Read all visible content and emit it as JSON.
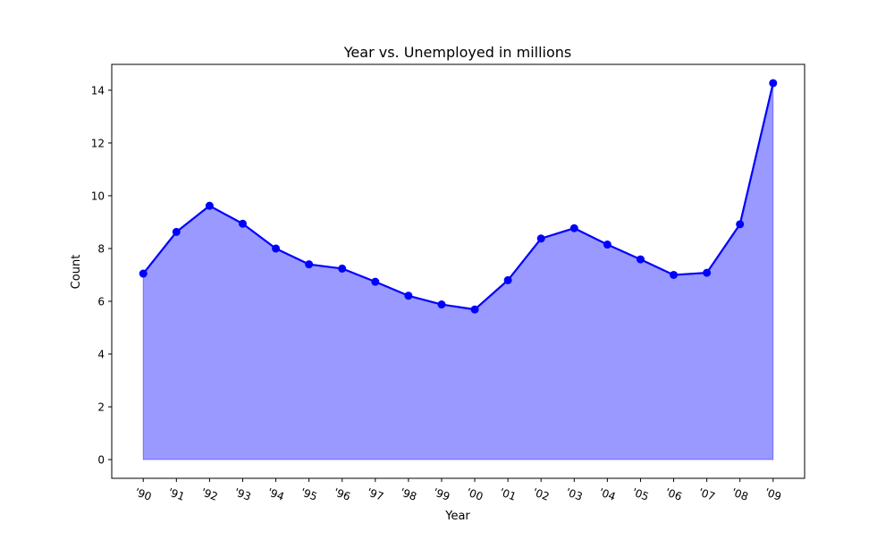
{
  "chart_data": {
    "type": "area",
    "title": "Year vs. Unemployed in millions",
    "xlabel": "Year",
    "ylabel": "Count",
    "categories": [
      "'90",
      "'91",
      "'92",
      "'93",
      "'94",
      "'95",
      "'96",
      "'97",
      "'98",
      "'99",
      "'00",
      "'01",
      "'02",
      "'03",
      "'04",
      "'05",
      "'06",
      "'07",
      "'08",
      "'09"
    ],
    "series": [
      {
        "values": [
          7.05,
          8.63,
          9.62,
          8.94,
          8.0,
          7.4,
          7.24,
          6.74,
          6.21,
          5.88,
          5.69,
          6.8,
          8.38,
          8.77,
          8.15,
          7.59,
          7.0,
          7.08,
          8.92,
          14.27
        ],
        "color": "#0000ff",
        "fill_color": "#0000ff",
        "fill_opacity": 0.4,
        "marker": "circle"
      }
    ],
    "yticks": [
      0,
      2,
      4,
      6,
      8,
      10,
      12,
      14
    ],
    "ylim": [
      -0.71,
      14.98
    ],
    "grid": false,
    "xtick_rotation": 20
  }
}
